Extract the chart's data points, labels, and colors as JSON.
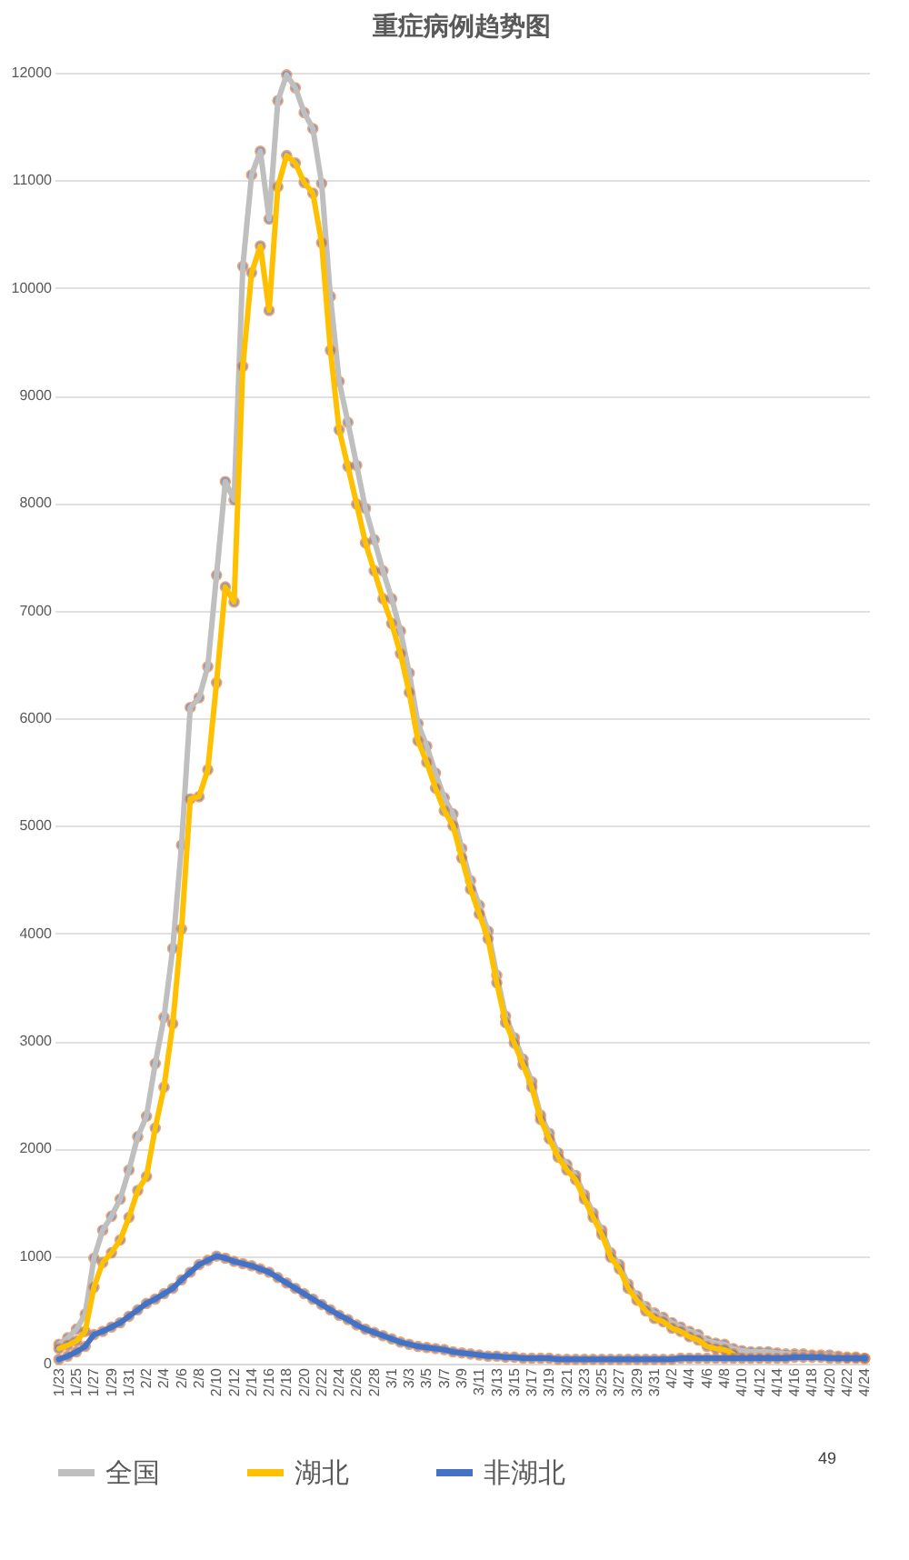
{
  "chart_data": {
    "type": "line",
    "title": "重症病例趋势图",
    "categories": [
      "1/23",
      null,
      "1/25",
      null,
      "1/27",
      null,
      "1/29",
      null,
      "1/31",
      null,
      "2/2",
      null,
      "2/4",
      null,
      "2/6",
      null,
      "2/8",
      null,
      "2/10",
      null,
      "2/12",
      null,
      "2/14",
      null,
      "2/16",
      null,
      "2/18",
      null,
      "2/20",
      null,
      "2/22",
      null,
      "2/24",
      null,
      "2/26",
      null,
      "2/28",
      null,
      "3/1",
      null,
      "3/3",
      null,
      "3/5",
      null,
      "3/7",
      null,
      "3/9",
      null,
      "3/11",
      null,
      "3/13",
      null,
      "3/15",
      null,
      "3/17",
      null,
      "3/19",
      null,
      "3/21",
      null,
      "3/23",
      null,
      "3/25",
      null,
      "3/27",
      null,
      "3/29",
      null,
      "3/31",
      null,
      "4/2",
      null,
      "4/4",
      null,
      "4/6",
      null,
      "4/8",
      null,
      "4/10",
      null,
      "4/12",
      null,
      "4/14",
      null,
      "4/16",
      null,
      "4/18",
      null,
      "4/20",
      null,
      "4/22",
      null,
      "4/24"
    ],
    "series": [
      {
        "name": "全国",
        "color": "#bfbfbf",
        "values": [
          180,
          240,
          320,
          460,
          980,
          1240,
          1370,
          1530,
          1800,
          2110,
          2300,
          2790,
          3220,
          3860,
          4820,
          6100,
          6190,
          6480,
          7330,
          8200,
          8030,
          10200,
          11050,
          11270,
          10640,
          11740,
          11980,
          11860,
          11630,
          11480,
          10970,
          9920,
          9130,
          8750,
          8350,
          7950,
          7660,
          7370,
          7110,
          6810,
          6420,
          5950,
          5740,
          5490,
          5260,
          5110,
          4790,
          4490,
          4260,
          4020,
          3610,
          3230,
          3030,
          2830,
          2620,
          2310,
          2140,
          1960,
          1850,
          1750,
          1570,
          1400,
          1240,
          1030,
          920,
          740,
          630,
          530,
          470,
          430,
          380,
          340,
          300,
          270,
          210,
          190,
          180,
          140,
          120,
          110,
          110,
          110,
          100,
          90,
          90,
          90,
          80,
          80,
          80,
          70,
          60,
          60,
          49
        ]
      },
      {
        "name": "湖北",
        "color": "#ffc000",
        "values": [
          140,
          170,
          210,
          300,
          710,
          940,
          1030,
          1150,
          1360,
          1610,
          1740,
          2190,
          2570,
          3160,
          4040,
          5250,
          5270,
          5520,
          6330,
          7220,
          7080,
          9270,
          10140,
          10390,
          9790,
          10940,
          11230,
          11160,
          10980,
          10880,
          10420,
          9420,
          8680,
          8340,
          7990,
          7630,
          7370,
          7110,
          6880,
          6600,
          6240,
          5790,
          5590,
          5350,
          5140,
          5000,
          4700,
          4410,
          4180,
          3950,
          3540,
          3170,
          2980,
          2780,
          2570,
          2270,
          2090,
          1920,
          1800,
          1710,
          1530,
          1360,
          1200,
          990,
          880,
          700,
          590,
          490,
          420,
          390,
          330,
          300,
          250,
          220,
          160,
          140,
          130,
          90,
          null,
          null,
          null,
          null,
          null,
          null,
          null,
          null,
          null,
          null,
          null,
          null,
          null,
          null,
          null
        ]
      },
      {
        "name": "非湖北",
        "color": "#4472c4",
        "values": [
          40,
          70,
          110,
          160,
          270,
          300,
          340,
          380,
          440,
          500,
          560,
          600,
          650,
          700,
          780,
          850,
          920,
          960,
          1000,
          980,
          950,
          930,
          910,
          880,
          850,
          800,
          750,
          700,
          650,
          600,
          550,
          500,
          450,
          410,
          360,
          320,
          290,
          260,
          230,
          200,
          180,
          160,
          150,
          140,
          130,
          110,
          100,
          90,
          80,
          70,
          70,
          60,
          60,
          50,
          50,
          50,
          50,
          40,
          40,
          40,
          40,
          40,
          40,
          40,
          40,
          40,
          40,
          40,
          40,
          40,
          40,
          50,
          50,
          50,
          50,
          50,
          50,
          50,
          50,
          50,
          50,
          50,
          50,
          50,
          60,
          60,
          60,
          60,
          50,
          50,
          50,
          50,
          49
        ]
      }
    ],
    "annotations": [
      "49"
    ],
    "ylim": [
      0,
      12000
    ],
    "yticks": [
      0,
      1000,
      2000,
      3000,
      4000,
      5000,
      6000,
      7000,
      8000,
      9000,
      10000,
      11000,
      12000
    ],
    "grid": "y",
    "legend": "bottom",
    "marker": "circle",
    "line_style": "solid"
  }
}
